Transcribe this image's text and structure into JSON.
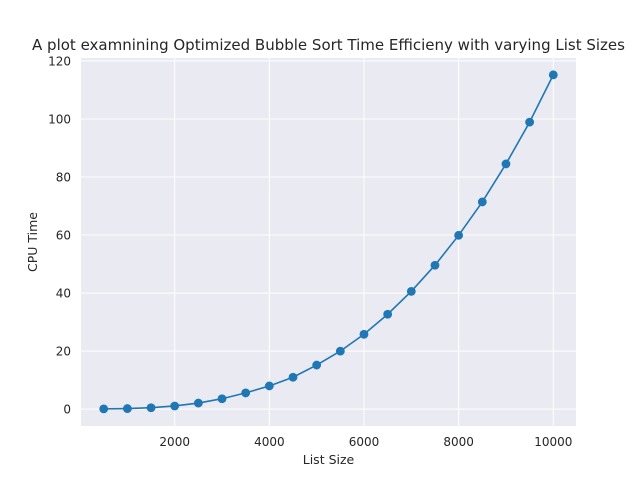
{
  "chart_data": {
    "type": "line",
    "title": "A plot examnining Optimized Bubble Sort Time Efficieny with varying List Sizes",
    "xlabel": "List Size",
    "ylabel": "CPU Time",
    "xlim": [
      20,
      10480
    ],
    "ylim": [
      -5.8,
      121
    ],
    "xticks": [
      2000,
      4000,
      6000,
      8000,
      10000
    ],
    "yticks": [
      0,
      20,
      40,
      60,
      80,
      100,
      120
    ],
    "grid": true,
    "legend": "none",
    "colors": {
      "series": "#1f77b4",
      "background": "#eaeaf2",
      "grid": "#ffffff"
    },
    "series": [
      {
        "marker": "circle",
        "x": [
          500,
          1000,
          1500,
          2000,
          2500,
          3000,
          3500,
          4000,
          4500,
          5000,
          5500,
          6000,
          6500,
          7000,
          7500,
          8000,
          8500,
          9000,
          9500,
          10000
        ],
        "values": [
          0.1,
          0.2,
          0.5,
          1.1,
          2.1,
          3.6,
          5.6,
          8.0,
          11.0,
          15.2,
          20.0,
          25.8,
          32.7,
          40.6,
          49.6,
          59.9,
          71.4,
          84.5,
          98.9,
          115.2
        ]
      }
    ]
  }
}
